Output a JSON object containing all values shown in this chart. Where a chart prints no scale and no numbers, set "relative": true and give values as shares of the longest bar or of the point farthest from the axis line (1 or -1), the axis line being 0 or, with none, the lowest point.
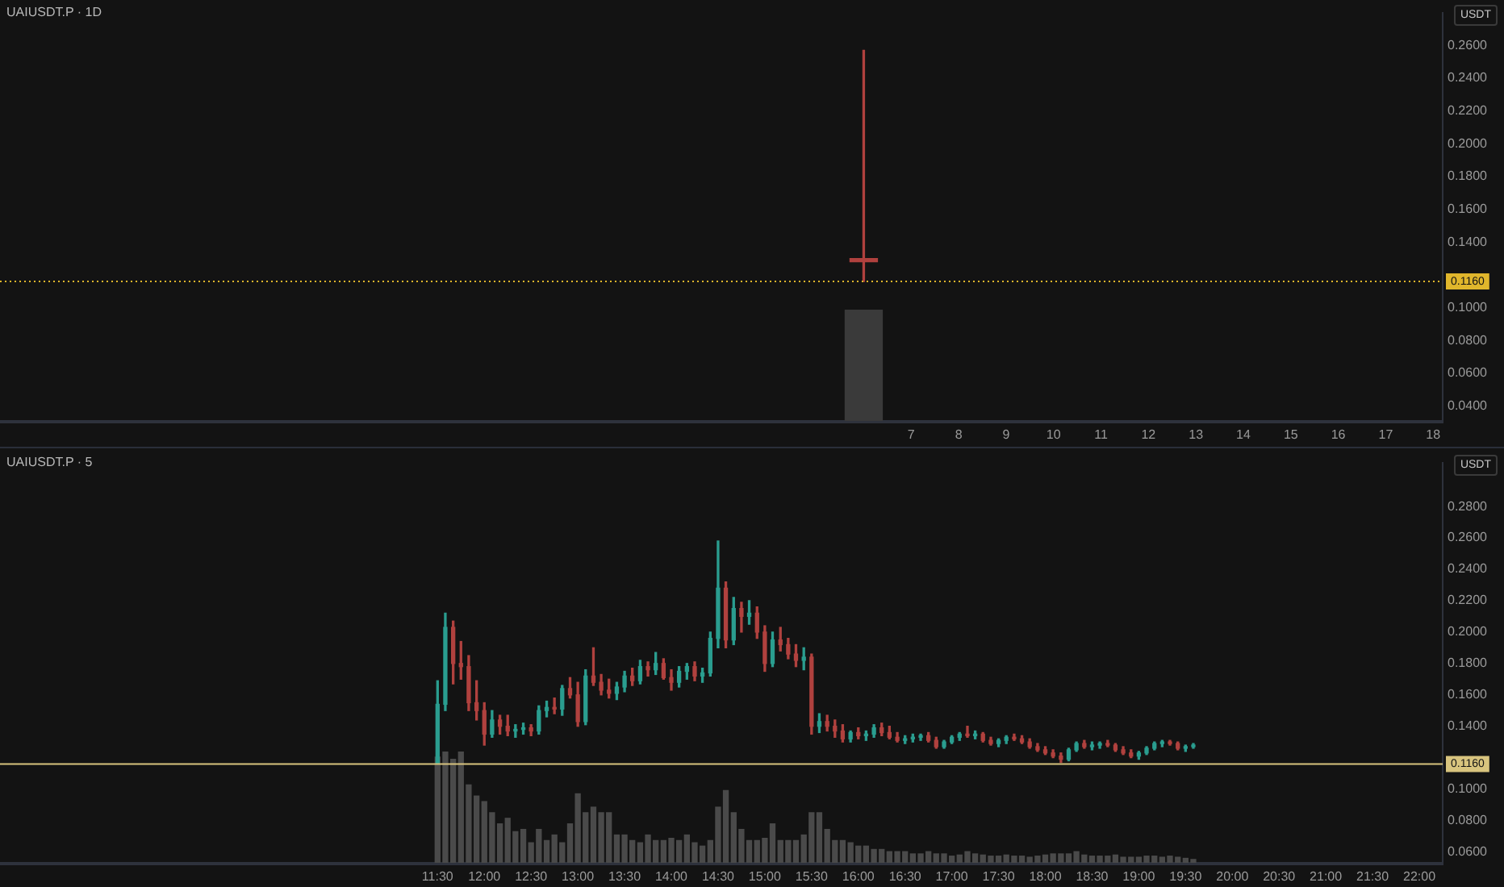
{
  "chart_data": [
    {
      "type": "candlestick",
      "title": "UAIUSDT.P · 1D",
      "ylabel": "USDT",
      "x": [
        6
      ],
      "ohlc": [
        [
          0.13,
          0.257,
          0.116,
          0.128
        ]
      ],
      "xlim": [
        -12.2,
        18.2
      ],
      "xticks": [
        7,
        8,
        9,
        10,
        11,
        12,
        13,
        14,
        15,
        16,
        17,
        18
      ],
      "ylim": [
        0.03,
        0.28
      ],
      "yticks": [
        {
          "value": 0.04,
          "label": "0.0400"
        },
        {
          "value": 0.06,
          "label": "0.0600"
        },
        {
          "value": 0.08,
          "label": "0.0800"
        },
        {
          "value": 0.1,
          "label": "0.1000"
        },
        {
          "value": 0.14,
          "label": "0.1400"
        },
        {
          "value": 0.16,
          "label": "0.1600"
        },
        {
          "value": 0.18,
          "label": "0.1800"
        },
        {
          "value": 0.2,
          "label": "0.2000"
        },
        {
          "value": 0.22,
          "label": "0.2200"
        },
        {
          "value": 0.24,
          "label": "0.2400"
        },
        {
          "value": 0.26,
          "label": "0.2600"
        }
      ],
      "ref_lines": [
        {
          "axis": "y",
          "value": 0.116,
          "label": "0.1160",
          "color": "#e0b62c",
          "line_style": "dotted"
        }
      ]
    },
    {
      "type": "bar",
      "relative": true,
      "tick_labels": false,
      "x": [
        6
      ],
      "values": [
        1
      ],
      "color": "#3a3a3a",
      "xlim": [
        -12.2,
        18.2
      ]
    },
    {
      "type": "candlestick",
      "title": "UAIUSDT.P · 5",
      "ylabel": "USDT",
      "x": [
        11.5,
        11.583,
        11.667,
        11.75,
        11.833,
        11.917,
        12,
        12.083,
        12.167,
        12.25,
        12.333,
        12.417,
        12.5,
        12.583,
        12.667,
        12.75,
        12.833,
        12.917,
        13,
        13.083,
        13.167,
        13.25,
        13.333,
        13.417,
        13.5,
        13.583,
        13.667,
        13.75,
        13.833,
        13.917,
        14,
        14.083,
        14.167,
        14.25,
        14.333,
        14.417,
        14.5,
        14.583,
        14.667,
        14.75,
        14.833,
        14.917,
        15,
        15.083,
        15.167,
        15.25,
        15.333,
        15.417,
        15.5,
        15.583,
        15.667,
        15.75,
        15.833,
        15.917,
        16,
        16.083,
        16.167,
        16.25,
        16.333,
        16.417,
        16.5,
        16.583,
        16.667,
        16.75,
        16.833,
        16.917,
        17,
        17.083,
        17.167,
        17.25,
        17.333,
        17.417,
        17.5,
        17.583,
        17.667,
        17.75,
        17.833,
        17.917,
        18,
        18.083,
        18.167,
        18.25,
        18.333,
        18.417,
        18.5,
        18.583,
        18.667,
        18.75,
        18.833,
        18.917,
        19,
        19.083,
        19.167,
        19.25,
        19.333,
        19.417,
        19.5,
        19.583
      ],
      "ohlc": [
        [
          0.116,
          0.169,
          0.116,
          0.154
        ],
        [
          0.154,
          0.212,
          0.15,
          0.203
        ],
        [
          0.203,
          0.207,
          0.167,
          0.18
        ],
        [
          0.18,
          0.194,
          0.17,
          0.178
        ],
        [
          0.178,
          0.185,
          0.15,
          0.155
        ],
        [
          0.155,
          0.169,
          0.144,
          0.15
        ],
        [
          0.15,
          0.155,
          0.128,
          0.135
        ],
        [
          0.135,
          0.15,
          0.133,
          0.144
        ],
        [
          0.144,
          0.147,
          0.135,
          0.14
        ],
        [
          0.14,
          0.147,
          0.134,
          0.137
        ],
        [
          0.137,
          0.141,
          0.133,
          0.138
        ],
        [
          0.138,
          0.142,
          0.135,
          0.139
        ],
        [
          0.139,
          0.141,
          0.134,
          0.137
        ],
        [
          0.137,
          0.153,
          0.135,
          0.15
        ],
        [
          0.15,
          0.156,
          0.146,
          0.152
        ],
        [
          0.152,
          0.158,
          0.148,
          0.151
        ],
        [
          0.151,
          0.166,
          0.147,
          0.164
        ],
        [
          0.164,
          0.171,
          0.158,
          0.16
        ],
        [
          0.16,
          0.168,
          0.14,
          0.143
        ],
        [
          0.143,
          0.176,
          0.141,
          0.172
        ],
        [
          0.172,
          0.19,
          0.166,
          0.168
        ],
        [
          0.168,
          0.173,
          0.16,
          0.163
        ],
        [
          0.163,
          0.17,
          0.158,
          0.161
        ],
        [
          0.161,
          0.168,
          0.157,
          0.165
        ],
        [
          0.165,
          0.175,
          0.162,
          0.172
        ],
        [
          0.172,
          0.177,
          0.166,
          0.169
        ],
        [
          0.169,
          0.182,
          0.167,
          0.178
        ],
        [
          0.178,
          0.181,
          0.172,
          0.176
        ],
        [
          0.176,
          0.187,
          0.173,
          0.18
        ],
        [
          0.18,
          0.183,
          0.17,
          0.171
        ],
        [
          0.171,
          0.176,
          0.163,
          0.168
        ],
        [
          0.168,
          0.178,
          0.165,
          0.175
        ],
        [
          0.175,
          0.18,
          0.17,
          0.178
        ],
        [
          0.178,
          0.181,
          0.169,
          0.172
        ],
        [
          0.172,
          0.177,
          0.168,
          0.174
        ],
        [
          0.174,
          0.2,
          0.172,
          0.196
        ],
        [
          0.196,
          0.258,
          0.19,
          0.228
        ],
        [
          0.228,
          0.232,
          0.19,
          0.195
        ],
        [
          0.195,
          0.222,
          0.192,
          0.215
        ],
        [
          0.215,
          0.219,
          0.2,
          0.21
        ],
        [
          0.21,
          0.22,
          0.205,
          0.212
        ],
        [
          0.212,
          0.216,
          0.196,
          0.2
        ],
        [
          0.2,
          0.204,
          0.175,
          0.18
        ],
        [
          0.18,
          0.2,
          0.178,
          0.195
        ],
        [
          0.195,
          0.203,
          0.188,
          0.192
        ],
        [
          0.192,
          0.196,
          0.183,
          0.186
        ],
        [
          0.186,
          0.192,
          0.178,
          0.182
        ],
        [
          0.182,
          0.19,
          0.176,
          0.184
        ],
        [
          0.184,
          0.186,
          0.135,
          0.14
        ],
        [
          0.14,
          0.148,
          0.136,
          0.143
        ],
        [
          0.143,
          0.147,
          0.137,
          0.14
        ],
        [
          0.14,
          0.144,
          0.133,
          0.137
        ],
        [
          0.137,
          0.141,
          0.13,
          0.132
        ],
        [
          0.132,
          0.137,
          0.13,
          0.136
        ],
        [
          0.136,
          0.139,
          0.132,
          0.134
        ],
        [
          0.134,
          0.137,
          0.131,
          0.135
        ],
        [
          0.135,
          0.141,
          0.133,
          0.139
        ],
        [
          0.139,
          0.142,
          0.134,
          0.136
        ],
        [
          0.136,
          0.14,
          0.132,
          0.133
        ],
        [
          0.133,
          0.136,
          0.13,
          0.131
        ],
        [
          0.131,
          0.134,
          0.129,
          0.132
        ],
        [
          0.132,
          0.135,
          0.13,
          0.133
        ],
        [
          0.133,
          0.135,
          0.131,
          0.134
        ],
        [
          0.134,
          0.136,
          0.13,
          0.131
        ],
        [
          0.131,
          0.133,
          0.126,
          0.127
        ],
        [
          0.127,
          0.131,
          0.126,
          0.13
        ],
        [
          0.13,
          0.134,
          0.129,
          0.133
        ],
        [
          0.133,
          0.136,
          0.131,
          0.135
        ],
        [
          0.135,
          0.14,
          0.133,
          0.134
        ],
        [
          0.134,
          0.137,
          0.132,
          0.135
        ],
        [
          0.135,
          0.136,
          0.13,
          0.131
        ],
        [
          0.131,
          0.133,
          0.128,
          0.129
        ],
        [
          0.129,
          0.132,
          0.127,
          0.131
        ],
        [
          0.131,
          0.134,
          0.129,
          0.133
        ],
        [
          0.133,
          0.135,
          0.131,
          0.132
        ],
        [
          0.132,
          0.134,
          0.129,
          0.13
        ],
        [
          0.13,
          0.132,
          0.126,
          0.127
        ],
        [
          0.127,
          0.129,
          0.124,
          0.125
        ],
        [
          0.125,
          0.127,
          0.122,
          0.123
        ],
        [
          0.123,
          0.125,
          0.12,
          0.121
        ],
        [
          0.121,
          0.123,
          0.117,
          0.119
        ],
        [
          0.119,
          0.126,
          0.118,
          0.125
        ],
        [
          0.125,
          0.13,
          0.124,
          0.129
        ],
        [
          0.129,
          0.131,
          0.126,
          0.127
        ],
        [
          0.127,
          0.13,
          0.125,
          0.128
        ],
        [
          0.128,
          0.13,
          0.126,
          0.129
        ],
        [
          0.129,
          0.131,
          0.127,
          0.128
        ],
        [
          0.128,
          0.129,
          0.124,
          0.125
        ],
        [
          0.125,
          0.127,
          0.122,
          0.123
        ],
        [
          0.123,
          0.125,
          0.12,
          0.121
        ],
        [
          0.121,
          0.124,
          0.119,
          0.123
        ],
        [
          0.123,
          0.127,
          0.122,
          0.126
        ],
        [
          0.126,
          0.13,
          0.125,
          0.129
        ],
        [
          0.129,
          0.131,
          0.127,
          0.13
        ],
        [
          0.13,
          0.131,
          0.128,
          0.129
        ],
        [
          0.129,
          0.13,
          0.125,
          0.126
        ],
        [
          0.126,
          0.128,
          0.124,
          0.127
        ],
        [
          0.127,
          0.129,
          0.126,
          0.128
        ]
      ],
      "xlim": [
        6.82,
        22.25
      ],
      "xticks": [
        {
          "value": 11.5,
          "label": "11:30"
        },
        {
          "value": 12,
          "label": "12:00"
        },
        {
          "value": 12.5,
          "label": "12:30"
        },
        {
          "value": 13,
          "label": "13:00"
        },
        {
          "value": 13.5,
          "label": "13:30"
        },
        {
          "value": 14,
          "label": "14:00"
        },
        {
          "value": 14.5,
          "label": "14:30"
        },
        {
          "value": 15,
          "label": "15:00"
        },
        {
          "value": 15.5,
          "label": "15:30"
        },
        {
          "value": 16,
          "label": "16:00"
        },
        {
          "value": 16.5,
          "label": "16:30"
        },
        {
          "value": 17,
          "label": "17:00"
        },
        {
          "value": 17.5,
          "label": "17:30"
        },
        {
          "value": 18,
          "label": "18:00"
        },
        {
          "value": 18.5,
          "label": "18:30"
        },
        {
          "value": 19,
          "label": "19:00"
        },
        {
          "value": 19.5,
          "label": "19:30"
        },
        {
          "value": 20,
          "label": "20:00"
        },
        {
          "value": 20.5,
          "label": "20:30"
        },
        {
          "value": 21,
          "label": "21:00"
        },
        {
          "value": 21.5,
          "label": "21:30"
        },
        {
          "value": 22,
          "label": "22:00"
        }
      ],
      "ylim": [
        0.052,
        0.308
      ],
      "yticks": [
        {
          "value": 0.06,
          "label": "0.0600"
        },
        {
          "value": 0.08,
          "label": "0.0800"
        },
        {
          "value": 0.1,
          "label": "0.1000"
        },
        {
          "value": 0.14,
          "label": "0.1400"
        },
        {
          "value": 0.16,
          "label": "0.1600"
        },
        {
          "value": 0.18,
          "label": "0.1800"
        },
        {
          "value": 0.2,
          "label": "0.2000"
        },
        {
          "value": 0.22,
          "label": "0.2200"
        },
        {
          "value": 0.24,
          "label": "0.2400"
        },
        {
          "value": 0.26,
          "label": "0.2600"
        },
        {
          "value": 0.28,
          "label": "0.2800"
        }
      ],
      "ref_lines": [
        {
          "axis": "y",
          "value": 0.116,
          "label": "0.1160",
          "color": "#d8c47e",
          "line_style": "solid"
        }
      ]
    },
    {
      "type": "bar",
      "relative": true,
      "tick_labels": false,
      "color": "#4a4a4a",
      "xlim": [
        6.82,
        22.25
      ],
      "x": [
        11.5,
        11.583,
        11.667,
        11.75,
        11.833,
        11.917,
        12,
        12.083,
        12.167,
        12.25,
        12.333,
        12.417,
        12.5,
        12.583,
        12.667,
        12.75,
        12.833,
        12.917,
        13,
        13.083,
        13.167,
        13.25,
        13.333,
        13.417,
        13.5,
        13.583,
        13.667,
        13.75,
        13.833,
        13.917,
        14,
        14.083,
        14.167,
        14.25,
        14.333,
        14.417,
        14.5,
        14.583,
        14.667,
        14.75,
        14.833,
        14.917,
        15,
        15.083,
        15.167,
        15.25,
        15.333,
        15.417,
        15.5,
        15.583,
        15.667,
        15.75,
        15.833,
        15.917,
        16,
        16.083,
        16.167,
        16.25,
        16.333,
        16.417,
        16.5,
        16.583,
        16.667,
        16.75,
        16.833,
        16.917,
        17,
        17.083,
        17.167,
        17.25,
        17.333,
        17.417,
        17.5,
        17.583,
        17.667,
        17.75,
        17.833,
        17.917,
        18,
        18.083,
        18.167,
        18.25,
        18.333,
        18.417,
        18.5,
        18.583,
        18.667,
        18.75,
        18.833,
        18.917,
        19,
        19.083,
        19.167,
        19.25,
        19.333,
        19.417,
        19.5,
        19.583
      ],
      "values": [
        0.95,
        1,
        0.93,
        1,
        0.7,
        0.6,
        0.55,
        0.45,
        0.35,
        0.4,
        0.28,
        0.3,
        0.18,
        0.3,
        0.2,
        0.25,
        0.18,
        0.35,
        0.62,
        0.45,
        0.5,
        0.45,
        0.45,
        0.25,
        0.25,
        0.2,
        0.18,
        0.25,
        0.2,
        0.2,
        0.22,
        0.2,
        0.25,
        0.18,
        0.15,
        0.2,
        0.5,
        0.65,
        0.45,
        0.3,
        0.2,
        0.2,
        0.22,
        0.35,
        0.2,
        0.2,
        0.2,
        0.25,
        0.45,
        0.45,
        0.3,
        0.2,
        0.2,
        0.18,
        0.15,
        0.15,
        0.12,
        0.12,
        0.1,
        0.1,
        0.1,
        0.08,
        0.08,
        0.1,
        0.08,
        0.08,
        0.06,
        0.07,
        0.1,
        0.08,
        0.07,
        0.06,
        0.06,
        0.07,
        0.06,
        0.06,
        0.05,
        0.06,
        0.07,
        0.08,
        0.08,
        0.08,
        0.1,
        0.07,
        0.06,
        0.06,
        0.06,
        0.07,
        0.05,
        0.05,
        0.05,
        0.06,
        0.06,
        0.05,
        0.06,
        0.05,
        0.04,
        0.03
      ]
    }
  ]
}
